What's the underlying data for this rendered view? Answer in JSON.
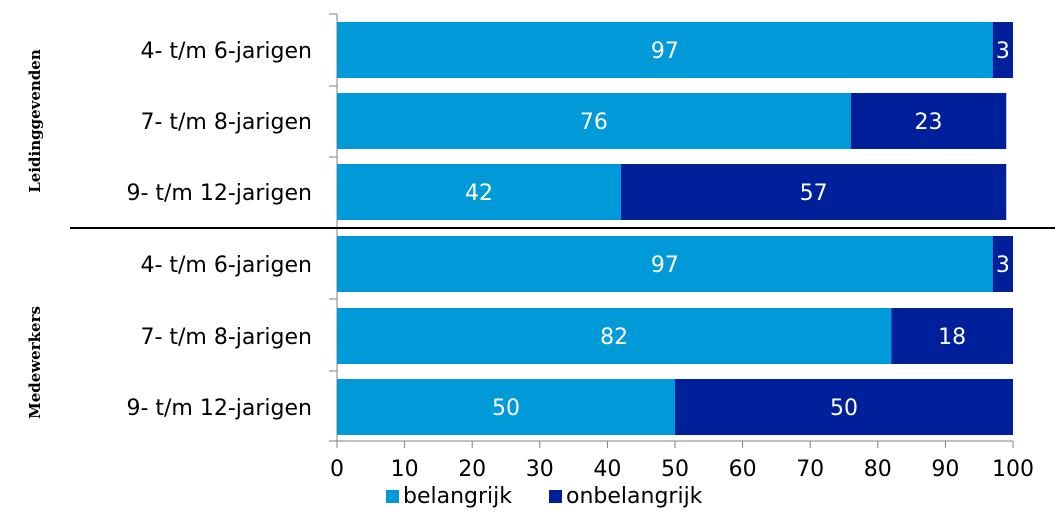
{
  "chart_data": {
    "type": "bar",
    "orientation": "horizontal",
    "stacked": true,
    "xlim": [
      0,
      100
    ],
    "xticks": [
      0,
      10,
      20,
      30,
      40,
      50,
      60,
      70,
      80,
      90,
      100
    ],
    "legend_position": "bottom",
    "grid": false,
    "series": [
      {
        "name": "belangrijk",
        "color": "#009ad8"
      },
      {
        "name": "onbelangrijk",
        "color": "#001f9b"
      }
    ],
    "groups": [
      {
        "label": "Leidinggevenden",
        "rows": [
          {
            "category": "4- t/m 6-jarigen",
            "values": [
              97,
              3
            ]
          },
          {
            "category": "7- t/m 8-jarigen",
            "values": [
              76,
              23
            ]
          },
          {
            "category": "9- t/m 12-jarigen",
            "values": [
              42,
              57
            ]
          }
        ]
      },
      {
        "label": "Medewerkers",
        "rows": [
          {
            "category": "4- t/m 6-jarigen",
            "values": [
              97,
              3
            ]
          },
          {
            "category": "7- t/m 8-jarigen",
            "values": [
              82,
              18
            ]
          },
          {
            "category": "9- t/m 12-jarigen",
            "values": [
              50,
              50
            ]
          }
        ]
      }
    ]
  }
}
